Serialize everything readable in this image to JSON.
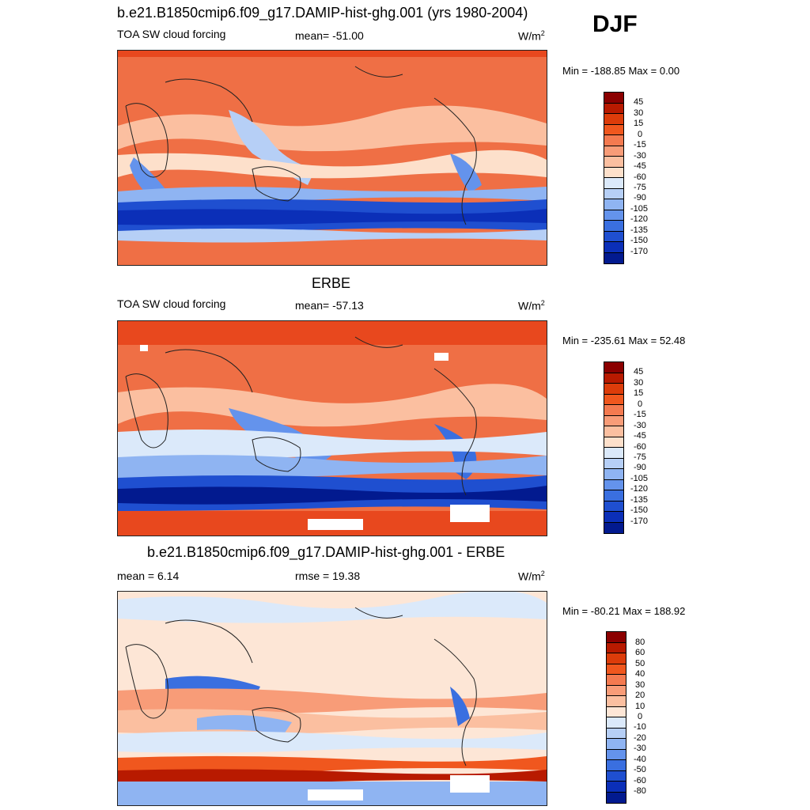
{
  "season": "DJF",
  "panels": [
    {
      "title": "b.e21.B1850cmip6.f09_g17.DAMIP-hist-ghg.001 (yrs 1980-2004)",
      "left_label": "TOA SW cloud forcing",
      "center_label": "mean= -51.00",
      "units": "W/m",
      "units_sup": "2",
      "minmax": "Min = -188.85 Max =   0.00",
      "colorbar": {
        "labels": [
          "45",
          "30",
          "15",
          "0",
          "-15",
          "-30",
          "-45",
          "-60",
          "-75",
          "-90",
          "-105",
          "-120",
          "-135",
          "-150",
          "-170"
        ],
        "colors": [
          "#8b0000",
          "#b81a00",
          "#dc3c0a",
          "#f0571e",
          "#f47a50",
          "#f89c78",
          "#fbbfa0",
          "#fde0cb",
          "#dbe9fa",
          "#b6cff6",
          "#8fb4f2",
          "#6493ec",
          "#3a6fe0",
          "#1f4fd0",
          "#0b2fb8",
          "#021a8f"
        ]
      }
    },
    {
      "title": "ERBE",
      "left_label": "TOA SW cloud forcing",
      "center_label": "mean= -57.13",
      "units": "W/m",
      "units_sup": "2",
      "minmax": "Min = -235.61 Max =  52.48",
      "colorbar": {
        "labels": [
          "45",
          "30",
          "15",
          "0",
          "-15",
          "-30",
          "-45",
          "-60",
          "-75",
          "-90",
          "-105",
          "-120",
          "-135",
          "-150",
          "-170"
        ],
        "colors": [
          "#8b0000",
          "#b81a00",
          "#dc3c0a",
          "#f0571e",
          "#f47a50",
          "#f89c78",
          "#fbbfa0",
          "#fde0cb",
          "#dbe9fa",
          "#b6cff6",
          "#8fb4f2",
          "#6493ec",
          "#3a6fe0",
          "#1f4fd0",
          "#0b2fb8",
          "#021a8f"
        ]
      }
    },
    {
      "title": "b.e21.B1850cmip6.f09_g17.DAMIP-hist-ghg.001 - ERBE",
      "left_label": "mean =   6.14",
      "center_label": "rmse =  19.38",
      "units": "W/m",
      "units_sup": "2",
      "minmax": "Min = -80.21 Max = 188.92",
      "colorbar": {
        "labels": [
          "80",
          "60",
          "50",
          "40",
          "30",
          "20",
          "10",
          "0",
          "-10",
          "-20",
          "-30",
          "-40",
          "-50",
          "-60",
          "-80"
        ],
        "colors": [
          "#8b0000",
          "#b81a00",
          "#dc3c0a",
          "#f0571e",
          "#f47a50",
          "#f89c78",
          "#fbbfa0",
          "#fde6d6",
          "#dbe9fa",
          "#b6cff6",
          "#8fb4f2",
          "#6493ec",
          "#3a6fe0",
          "#1f4fd0",
          "#0b2fb8",
          "#021a8f"
        ]
      }
    }
  ]
}
